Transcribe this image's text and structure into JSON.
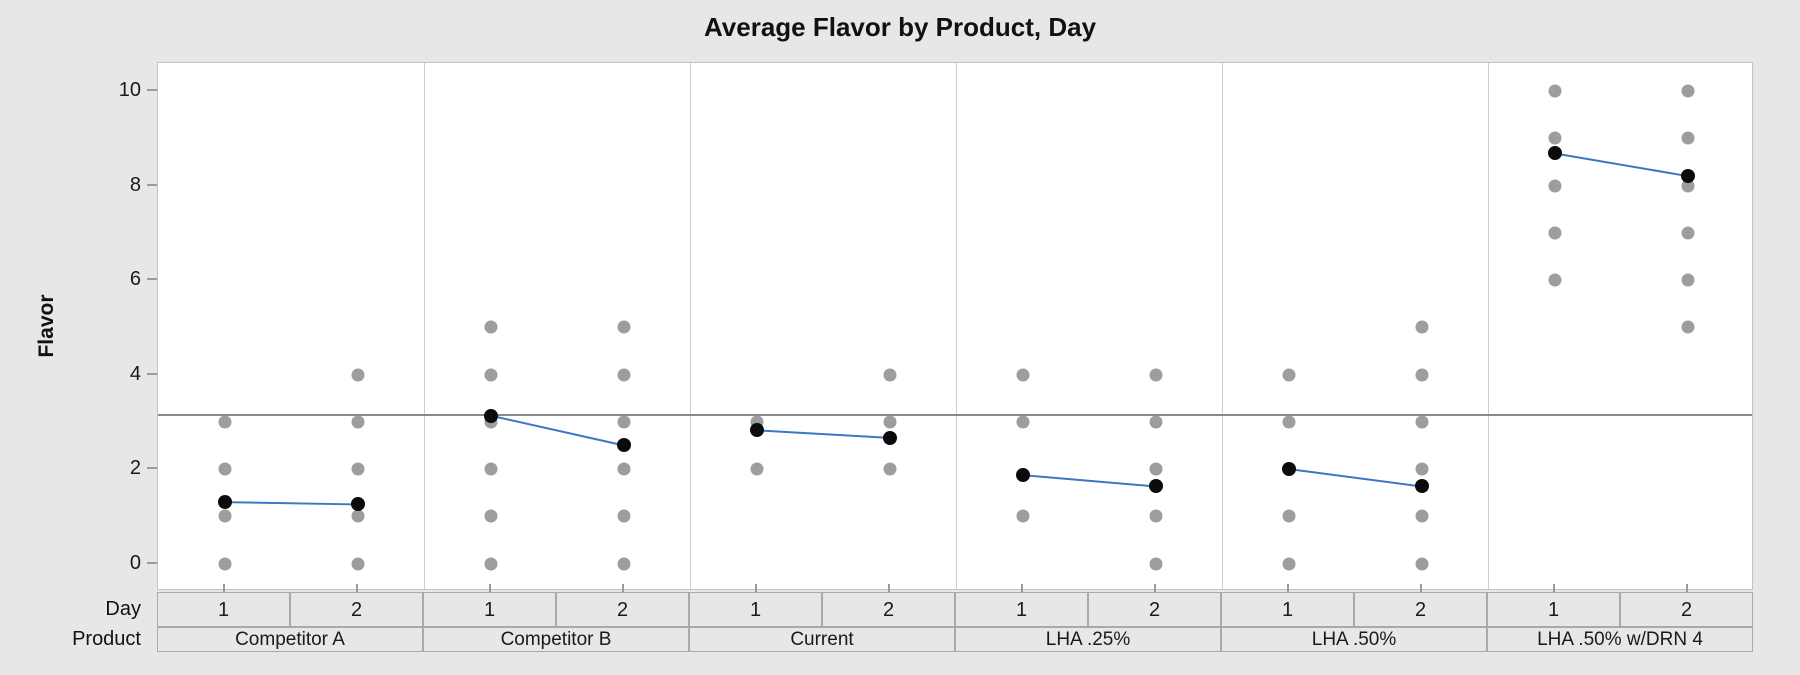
{
  "title": "Average Flavor by Product, Day",
  "y_axis": {
    "label": "Flavor",
    "tick_labels": [
      "0",
      "2",
      "4",
      "6",
      "8",
      "10"
    ]
  },
  "x_axis": {
    "level1_label": "Day",
    "level2_label": "Product"
  },
  "colors": {
    "background": "#e7e7e7",
    "plot_background": "#ffffff",
    "individual_point_gray": "#9d9d9d",
    "mean_point_black": "#0b0b0b",
    "mean_connect_line_blue": "#3c77c2",
    "reference_line_gray": "#8a8a8a"
  },
  "chart_data": {
    "type": "scatter",
    "subtype": "individual-value-plot-with-connected-means",
    "title": "Average Flavor by Product, Day",
    "ylabel": "Flavor",
    "ylim": [
      0,
      10
    ],
    "y_ticks": [
      0,
      2,
      4,
      6,
      8,
      10
    ],
    "grid": false,
    "legend": "none",
    "reference_line_overall_mean": 3.14,
    "x_levels": {
      "inner": "Day",
      "outer": "Product"
    },
    "panels": [
      {
        "product": "Competitor A",
        "days": [
          {
            "day": "1",
            "individual_values": [
              0,
              1,
              2,
              3
            ],
            "mean": 1.3
          },
          {
            "day": "2",
            "individual_values": [
              0,
              1,
              2,
              3,
              4
            ],
            "mean": 1.25
          }
        ]
      },
      {
        "product": "Competitor B",
        "days": [
          {
            "day": "1",
            "individual_values": [
              0,
              1,
              2,
              3,
              4,
              5
            ],
            "mean": 3.13
          },
          {
            "day": "2",
            "individual_values": [
              0,
              1,
              2,
              3,
              4,
              5
            ],
            "mean": 2.5
          }
        ]
      },
      {
        "product": "Current",
        "days": [
          {
            "day": "1",
            "individual_values": [
              2,
              3
            ],
            "mean": 2.82
          },
          {
            "day": "2",
            "individual_values": [
              2,
              3,
              4
            ],
            "mean": 2.66
          }
        ]
      },
      {
        "product": "LHA .25%",
        "days": [
          {
            "day": "1",
            "individual_values": [
              1,
              3,
              4
            ],
            "mean": 1.87
          },
          {
            "day": "2",
            "individual_values": [
              0,
              1,
              2,
              3,
              4
            ],
            "mean": 1.63
          }
        ]
      },
      {
        "product": "LHA .50%",
        "days": [
          {
            "day": "1",
            "individual_values": [
              0,
              1,
              3,
              4
            ],
            "mean": 2.0
          },
          {
            "day": "2",
            "individual_values": [
              0,
              1,
              2,
              3,
              4,
              5
            ],
            "mean": 1.63
          }
        ]
      },
      {
        "product": "LHA .50% w/DRN 4",
        "days": [
          {
            "day": "1",
            "individual_values": [
              6,
              7,
              8,
              9,
              10
            ],
            "mean": 8.68
          },
          {
            "day": "2",
            "individual_values": [
              5,
              6,
              7,
              8,
              9,
              10
            ],
            "mean": 8.2
          }
        ]
      }
    ]
  }
}
